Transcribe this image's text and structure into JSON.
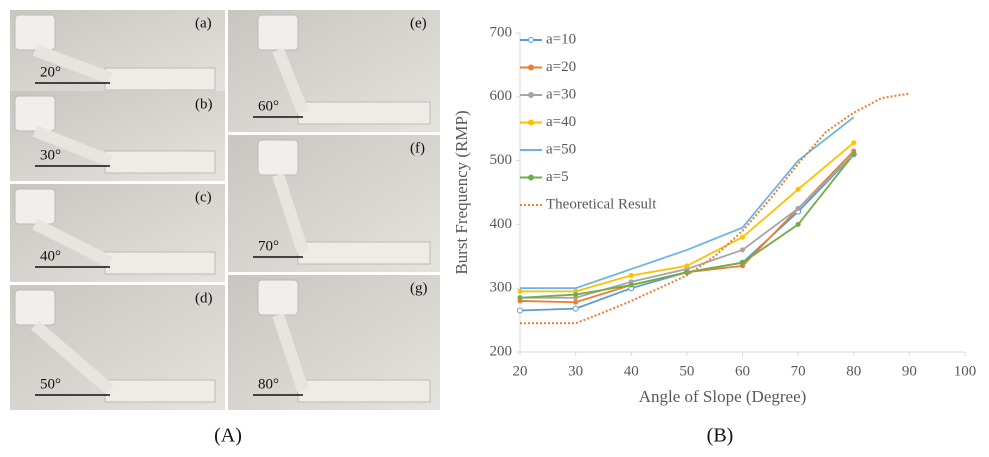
{
  "panels": {
    "photos": [
      {
        "tag": "(a)",
        "angle": "20°"
      },
      {
        "tag": "(b)",
        "angle": "30°"
      },
      {
        "tag": "(c)",
        "angle": "40°"
      },
      {
        "tag": "(d)",
        "angle": "50°"
      },
      {
        "tag": "(e)",
        "angle": "60°"
      },
      {
        "tag": "(f)",
        "angle": "70°"
      },
      {
        "tag": "(g)",
        "angle": "80°"
      }
    ],
    "caption_a": "(A)",
    "caption_b": "(B)"
  },
  "chart_data": {
    "type": "line",
    "x_label": "Angle of Slope (Degree)",
    "y_label": "Burst Frequency (RMP)",
    "xlim": [
      20,
      100
    ],
    "xticks": [
      20,
      30,
      40,
      50,
      60,
      70,
      80,
      90,
      100
    ],
    "ylim": [
      200,
      700
    ],
    "yticks": [
      200,
      300,
      400,
      500,
      600,
      700
    ],
    "legend": "upper-left",
    "series": [
      {
        "name": "a=10",
        "color": "#5b9bd5",
        "marker": "open-circle",
        "x": [
          20,
          30,
          40,
          50,
          60,
          70,
          80
        ],
        "values": [
          265,
          268,
          300,
          325,
          340,
          420,
          510
        ]
      },
      {
        "name": "a=20",
        "color": "#ed7d31",
        "marker": "dot",
        "x": [
          20,
          30,
          40,
          50,
          60,
          70,
          80
        ],
        "values": [
          280,
          278,
          305,
          325,
          335,
          425,
          515
        ]
      },
      {
        "name": "a=30",
        "color": "#a5a5a5",
        "marker": "dot",
        "x": [
          20,
          30,
          40,
          50,
          60,
          70,
          80
        ],
        "values": [
          285,
          285,
          310,
          330,
          360,
          425,
          510
        ]
      },
      {
        "name": "a=40",
        "color": "#ffc000",
        "marker": "dot",
        "x": [
          20,
          30,
          40,
          50,
          60,
          70,
          80
        ],
        "values": [
          295,
          295,
          320,
          335,
          380,
          455,
          528
        ]
      },
      {
        "name": "a=50",
        "color": "#6cb4e8",
        "marker": "none",
        "x": [
          20,
          30,
          40,
          50,
          60,
          70,
          80
        ],
        "values": [
          300,
          300,
          330,
          360,
          395,
          500,
          568
        ]
      },
      {
        "name": "a=5",
        "color": "#70ad47",
        "marker": "dot",
        "x": [
          20,
          30,
          40,
          50,
          60,
          70,
          80
        ],
        "values": [
          285,
          290,
          305,
          325,
          340,
          400,
          510
        ]
      },
      {
        "name": "Theoretical Result",
        "color": "#ed7d31",
        "dashed": true,
        "marker": "none",
        "x": [
          20,
          25,
          30,
          35,
          40,
          45,
          50,
          55,
          60,
          65,
          70,
          75,
          80,
          85,
          90
        ],
        "values": [
          245,
          245,
          245,
          262,
          280,
          300,
          320,
          350,
          390,
          440,
          495,
          545,
          575,
          598,
          605
        ]
      }
    ]
  }
}
